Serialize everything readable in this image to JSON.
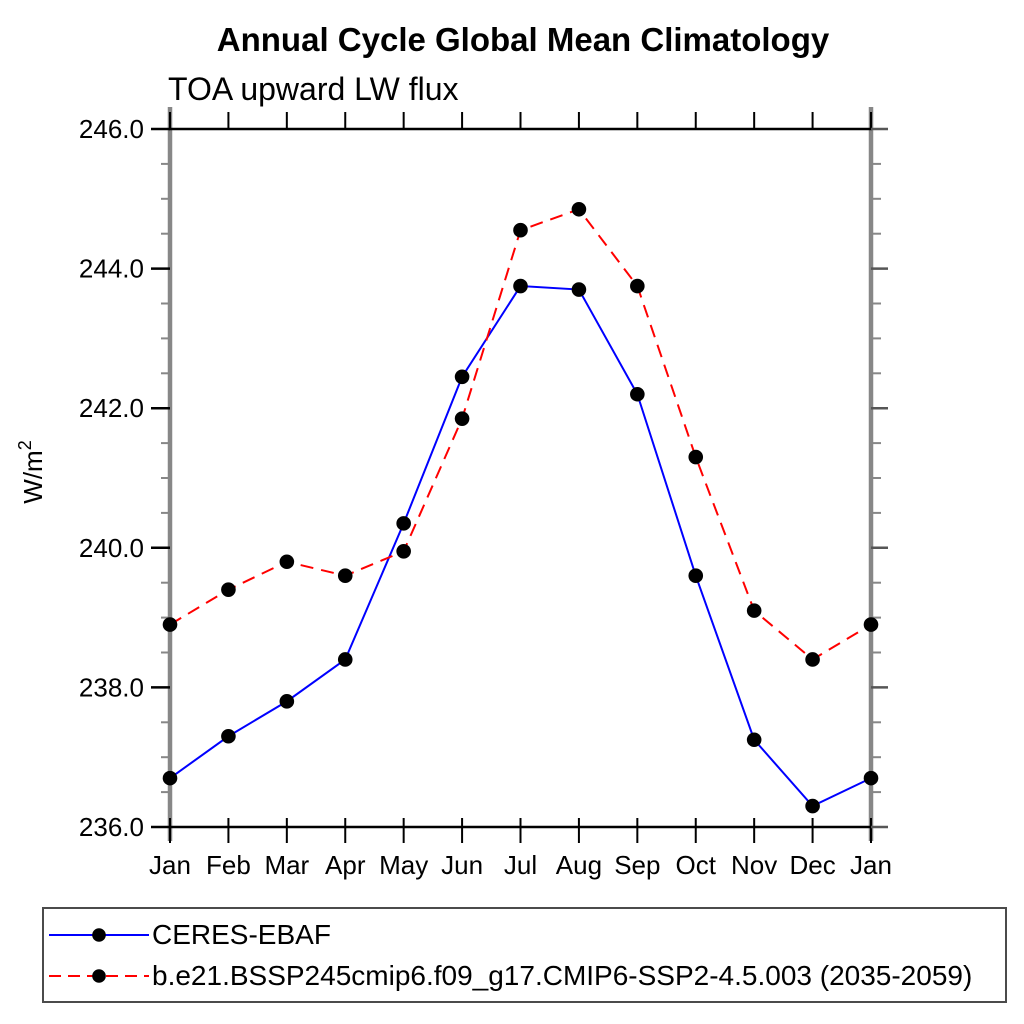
{
  "title": "Annual Cycle Global Mean Climatology",
  "subtitle": "TOA upward LW flux",
  "ylabel": {
    "base": "W/m",
    "sup": "2"
  },
  "chart_data": {
    "type": "line",
    "title": "Annual Cycle Global Mean Climatology",
    "subtitle": "TOA upward LW flux",
    "ylabel": "W/m^2",
    "xlabel": "",
    "categories": [
      "Jan",
      "Feb",
      "Mar",
      "Apr",
      "May",
      "Jun",
      "Jul",
      "Aug",
      "Sep",
      "Oct",
      "Nov",
      "Dec",
      "Jan"
    ],
    "series": [
      {
        "name": "CERES-EBAF",
        "color": "#0000ff",
        "dash": "solid",
        "marker": "filled-circle",
        "values": [
          236.7,
          237.3,
          237.8,
          238.4,
          240.35,
          242.45,
          243.75,
          243.7,
          242.2,
          239.6,
          237.25,
          236.3,
          236.7
        ]
      },
      {
        "name": "b.e21.BSSP245cmip6.f09_g17.CMIP6-SSP2-4.5.003 (2035-2059)",
        "color": "#ff0000",
        "dash": "dashed",
        "marker": "filled-circle",
        "values": [
          238.9,
          239.4,
          239.8,
          239.6,
          239.95,
          241.85,
          244.55,
          244.85,
          243.75,
          241.3,
          239.1,
          238.4,
          238.9
        ]
      }
    ],
    "ylim": [
      236.0,
      246.0
    ],
    "ytick_major": [
      236.0,
      238.0,
      240.0,
      242.0,
      244.0,
      246.0
    ],
    "ytick_labels": [
      "236.0",
      "238.0",
      "240.0",
      "242.0",
      "244.0",
      "246.0"
    ],
    "ytick_minor_step": 0.5,
    "grid": false,
    "legend_position": "bottom",
    "marker_color": "#000000",
    "axis_colors": {
      "spine_gray": "#878787",
      "frame_black": "#000000"
    }
  }
}
